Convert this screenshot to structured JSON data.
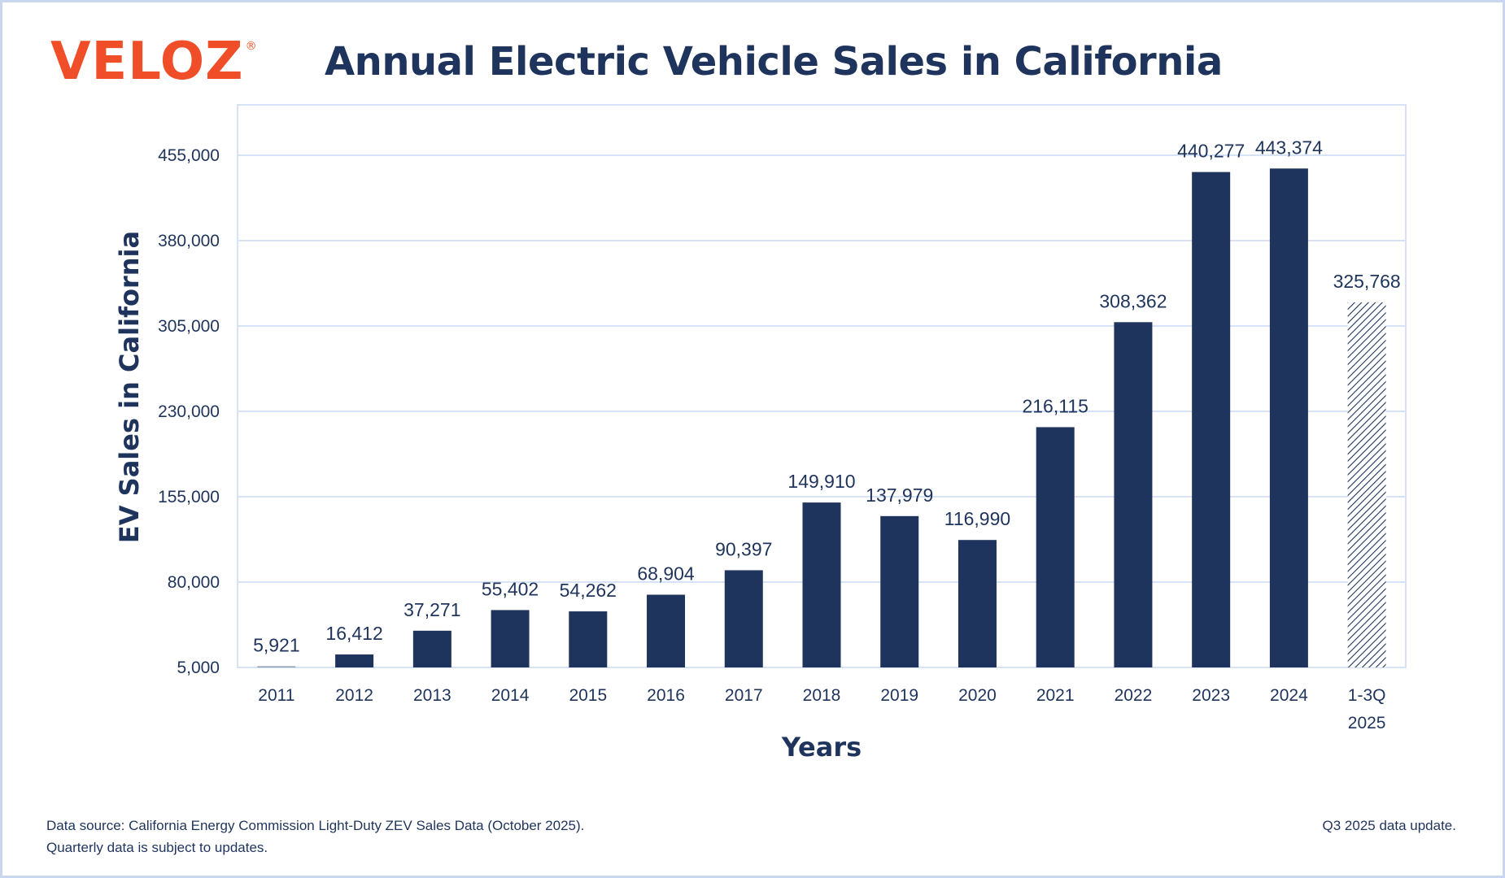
{
  "brand": {
    "logo_text": "VELOZ",
    "logo_mark": "®",
    "logo_color": "#f04e28"
  },
  "colors": {
    "bar": "#1f345c",
    "text": "#1f345c",
    "grid": "#d6e2f5",
    "frame": "#c8d7ef"
  },
  "chart_data": {
    "type": "bar",
    "title": "Annual Electric Vehicle Sales in California",
    "xlabel": "Years",
    "ylabel": "EV Sales in California",
    "categories": [
      "2011",
      "2012",
      "2013",
      "2014",
      "2015",
      "2016",
      "2017",
      "2018",
      "2019",
      "2020",
      "2021",
      "2022",
      "2023",
      "2024",
      "1-3Q 2025"
    ],
    "values": [
      5921,
      16412,
      37271,
      55402,
      54262,
      68904,
      90397,
      149910,
      137979,
      116990,
      216115,
      308362,
      440277,
      443374,
      325768
    ],
    "value_labels": [
      "5,921",
      "16,412",
      "37,271",
      "55,402",
      "54,262",
      "68,904",
      "90,397",
      "149,910",
      "137,979",
      "116,990",
      "216,115",
      "308,362",
      "440,277",
      "443,374",
      "325,768"
    ],
    "partial_year_hatched": [
      false,
      false,
      false,
      false,
      false,
      false,
      false,
      false,
      false,
      false,
      false,
      false,
      false,
      false,
      true
    ],
    "ylim": [
      5000,
      455000
    ],
    "yticks": [
      5000,
      80000,
      155000,
      230000,
      305000,
      380000,
      455000
    ],
    "ytick_labels": [
      "5,000",
      "80,000",
      "155,000",
      "230,000",
      "305,000",
      "380,000",
      "455,000"
    ],
    "grid": true,
    "legend": "none"
  },
  "footnotes": {
    "source_line1": "Data source: California Energy Commission Light-Duty ZEV Sales Data (October 2025).",
    "source_line2": "Quarterly data is subject to updates.",
    "update_note": "Q3 2025 data update."
  }
}
